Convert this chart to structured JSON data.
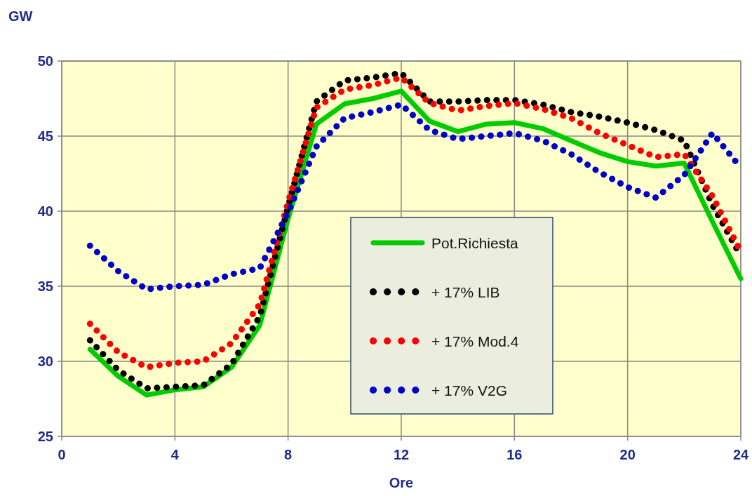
{
  "chart_data": {
    "type": "line",
    "xlabel": "Ore",
    "ylabel": "GW",
    "x": [
      1,
      2,
      3,
      4,
      5,
      6,
      7,
      8,
      9,
      10,
      11,
      12,
      13,
      14,
      15,
      16,
      17,
      18,
      19,
      20,
      21,
      22,
      23,
      24
    ],
    "series": [
      {
        "name": "Pot.Richiesta",
        "color": "#00cc00",
        "line_style": "solid",
        "values": [
          30.8,
          29.0,
          27.75,
          28.1,
          28.3,
          29.6,
          32.4,
          39.5,
          45.8,
          47.15,
          47.5,
          48.0,
          46.0,
          45.3,
          45.8,
          45.9,
          45.5,
          44.7,
          43.9,
          43.3,
          43.0,
          43.2,
          39.3,
          35.5
        ]
      },
      {
        "name": "+ 17% LIB",
        "color": "#000000",
        "line_style": "dotted",
        "values": [
          31.4,
          29.4,
          28.2,
          28.3,
          28.4,
          29.8,
          33.0,
          40.3,
          47.3,
          48.7,
          48.9,
          49.2,
          47.3,
          47.3,
          47.4,
          47.4,
          47.1,
          46.6,
          46.3,
          45.9,
          45.4,
          44.7,
          40.4,
          37.0
        ]
      },
      {
        "name": "+ 17% Mod.4",
        "color": "#ff0000",
        "line_style": "dotted",
        "values": [
          32.5,
          30.6,
          29.6,
          29.9,
          30.0,
          31.2,
          33.8,
          40.6,
          46.9,
          48.1,
          48.4,
          48.9,
          47.2,
          46.7,
          47.0,
          47.2,
          46.8,
          46.2,
          45.2,
          44.4,
          43.6,
          43.8,
          41.0,
          37.3
        ]
      },
      {
        "name": "+ 17% V2G",
        "color": "#0000cc",
        "line_style": "dotted",
        "values": [
          37.7,
          36.0,
          34.8,
          35.0,
          35.1,
          35.8,
          36.2,
          39.9,
          44.3,
          46.2,
          46.6,
          47.1,
          45.4,
          44.8,
          45.0,
          45.2,
          44.7,
          43.8,
          42.6,
          41.6,
          40.9,
          42.4,
          45.2,
          42.9
        ]
      }
    ],
    "xlim": [
      0,
      24
    ],
    "xticks": [
      0,
      4,
      8,
      12,
      16,
      20,
      24
    ],
    "ylim": [
      25,
      50
    ],
    "yticks": [
      25,
      30,
      35,
      40,
      45,
      50
    ],
    "grid": true,
    "legend": "center",
    "marker": "none"
  }
}
